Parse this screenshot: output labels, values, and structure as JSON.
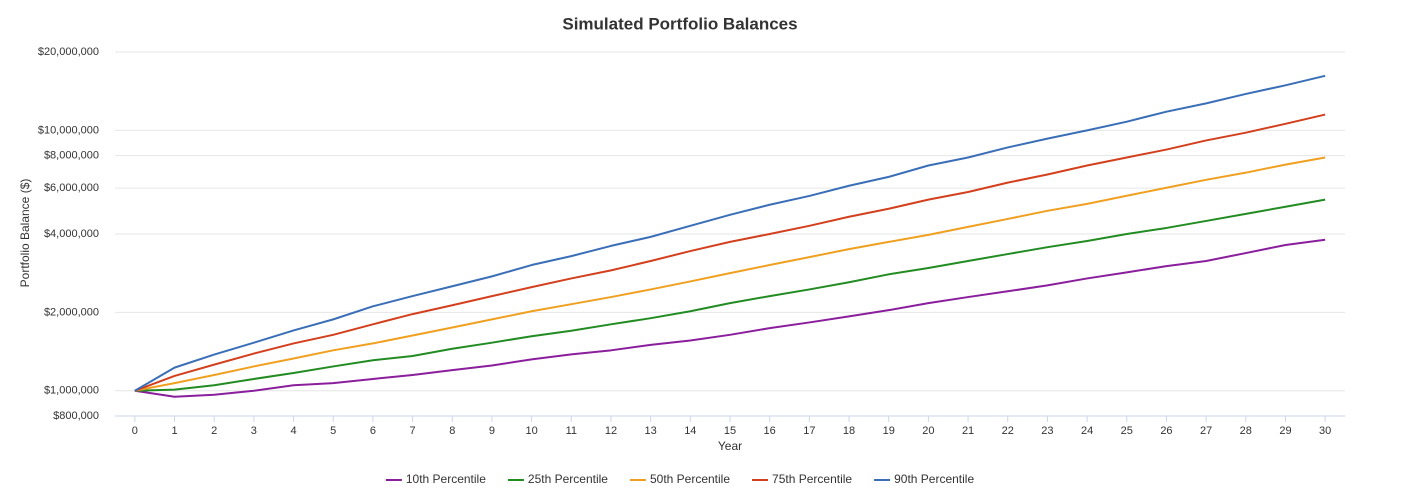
{
  "chart_data": {
    "type": "line",
    "title": "Simulated Portfolio Balances",
    "xlabel": "Year",
    "ylabel": "Portfolio Balance ($)",
    "yscale": "log",
    "grid": true,
    "legend": "bottom",
    "x": [
      0,
      1,
      2,
      3,
      4,
      5,
      6,
      7,
      8,
      9,
      10,
      11,
      12,
      13,
      14,
      15,
      16,
      17,
      18,
      19,
      20,
      21,
      22,
      23,
      24,
      25,
      26,
      27,
      28,
      29,
      30
    ],
    "xlim": [
      -0.5,
      30.5
    ],
    "xticks": [
      0,
      1,
      2,
      3,
      4,
      5,
      6,
      7,
      8,
      9,
      10,
      11,
      12,
      13,
      14,
      15,
      16,
      17,
      18,
      19,
      20,
      21,
      22,
      23,
      24,
      25,
      26,
      27,
      28,
      29,
      30
    ],
    "ylim": [
      800000,
      20000000
    ],
    "yticks": [
      {
        "value": 800000,
        "label": "$800,000"
      },
      {
        "value": 1000000,
        "label": "$1,000,000"
      },
      {
        "value": 2000000,
        "label": "$2,000,000"
      },
      {
        "value": 4000000,
        "label": "$4,000,000"
      },
      {
        "value": 6000000,
        "label": "$6,000,000"
      },
      {
        "value": 8000000,
        "label": "$8,000,000"
      },
      {
        "value": 10000000,
        "label": "$10,000,000"
      },
      {
        "value": 20000000,
        "label": "$20,000,000"
      }
    ],
    "series": [
      {
        "name": "10th Percentile",
        "color": "#8a1e9c",
        "values": [
          1000000,
          948000,
          965000,
          1000000,
          1050000,
          1070000,
          1110000,
          1150000,
          1200000,
          1250000,
          1320000,
          1380000,
          1430000,
          1500000,
          1560000,
          1640000,
          1740000,
          1830000,
          1930000,
          2040000,
          2170000,
          2290000,
          2410000,
          2540000,
          2700000,
          2850000,
          3010000,
          3150000,
          3380000,
          3630000,
          3800000
        ]
      },
      {
        "name": "25th Percentile",
        "color": "#228b22",
        "values": [
          1000000,
          1010000,
          1050000,
          1110000,
          1170000,
          1240000,
          1310000,
          1360000,
          1450000,
          1530000,
          1620000,
          1700000,
          1800000,
          1900000,
          2020000,
          2170000,
          2310000,
          2450000,
          2610000,
          2800000,
          2960000,
          3150000,
          3350000,
          3560000,
          3760000,
          4000000,
          4220000,
          4490000,
          4780000,
          5090000,
          5420000
        ]
      },
      {
        "name": "50th Percentile",
        "color": "#f0a020",
        "values": [
          1000000,
          1070000,
          1150000,
          1240000,
          1330000,
          1430000,
          1520000,
          1630000,
          1750000,
          1880000,
          2020000,
          2150000,
          2290000,
          2450000,
          2630000,
          2830000,
          3040000,
          3260000,
          3500000,
          3730000,
          3970000,
          4260000,
          4570000,
          4910000,
          5220000,
          5610000,
          6020000,
          6460000,
          6880000,
          7390000,
          7870000
        ]
      },
      {
        "name": "75th Percentile",
        "color": "#d2401e",
        "values": [
          1000000,
          1140000,
          1260000,
          1390000,
          1520000,
          1640000,
          1800000,
          1970000,
          2130000,
          2310000,
          2500000,
          2700000,
          2900000,
          3150000,
          3440000,
          3730000,
          4000000,
          4300000,
          4660000,
          5000000,
          5420000,
          5800000,
          6300000,
          6770000,
          7330000,
          7870000,
          8440000,
          9150000,
          9800000,
          10600000,
          11500000
        ]
      },
      {
        "name": "90th Percentile",
        "color": "#3a6fb8",
        "values": [
          1000000,
          1227000,
          1377000,
          1530000,
          1705000,
          1880000,
          2110000,
          2310000,
          2520000,
          2750000,
          3040000,
          3290000,
          3600000,
          3900000,
          4300000,
          4740000,
          5180000,
          5600000,
          6130000,
          6630000,
          7330000,
          7870000,
          8600000,
          9300000,
          10000000,
          10800000,
          11800000,
          12700000,
          13800000,
          14900000,
          16200000
        ]
      }
    ]
  }
}
